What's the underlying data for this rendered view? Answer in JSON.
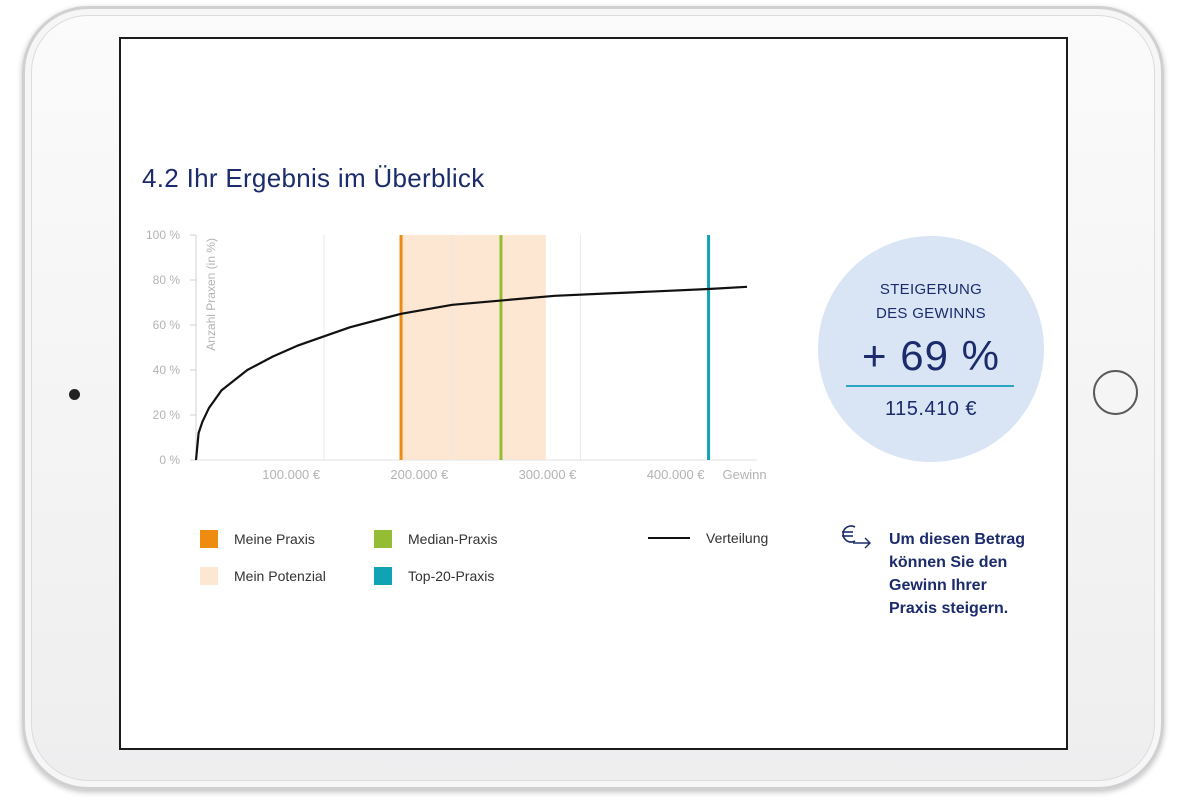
{
  "page": {
    "title": "4.2 Ihr Ergebnis im Überblick"
  },
  "kpi": {
    "label_line1": "STEIGERUNG",
    "label_line2": "DES GEWINNS",
    "value": "+ 69 %",
    "amount": "115.410 €"
  },
  "note": {
    "icon": "euro-arrow-icon",
    "text_lines": [
      "Um diesen Betrag",
      "können Sie den",
      "Gewinn Ihrer",
      "Praxis steigern."
    ]
  },
  "legend": {
    "meine_praxis": "Meine Praxis",
    "mein_potenzial": "Mein Potenzial",
    "median_praxis": "Median-Praxis",
    "top20_praxis": "Top-20-Praxis",
    "verteilung": "Verteilung"
  },
  "colors": {
    "primary_text": "#1b2b6b",
    "meine_praxis": "#ee8c12",
    "mein_potenzial": "#fde6d2",
    "median_praxis": "#94bd35",
    "top20_praxis": "#0fa3b5",
    "verteilung": "#111111",
    "kpi_circle": "#d9e5f4"
  },
  "chart_data": {
    "type": "line",
    "title": "4.2 Ihr Ergebnis im Überblick",
    "xlabel": "Gewinn",
    "ylabel": "Anzahl Praxen (in %)",
    "xlim": [
      0,
      430000
    ],
    "ylim": [
      0,
      100
    ],
    "x_ticks": [
      {
        "value": 100000,
        "label": "100.000 €"
      },
      {
        "value": 200000,
        "label": "200.000 €"
      },
      {
        "value": 300000,
        "label": "300.000 €"
      },
      {
        "value": 400000,
        "label": "400.000 €"
      }
    ],
    "y_ticks": [
      {
        "value": 0,
        "label": "0 %"
      },
      {
        "value": 20,
        "label": "20 %"
      },
      {
        "value": 40,
        "label": "40 %"
      },
      {
        "value": 60,
        "label": "60 %"
      },
      {
        "value": 80,
        "label": "80 %"
      },
      {
        "value": 100,
        "label": "100 %"
      }
    ],
    "grid": true,
    "series": [
      {
        "name": "Verteilung",
        "x": [
          0,
          2000,
          5000,
          10000,
          20000,
          40000,
          60000,
          80000,
          100000,
          120000,
          160000,
          200000,
          240000,
          280000,
          320000,
          360000,
          400000,
          430000
        ],
        "y": [
          0,
          12,
          17,
          23,
          31,
          40,
          46,
          51,
          55,
          59,
          65,
          69,
          71,
          73,
          74,
          75,
          76,
          77
        ]
      }
    ],
    "markers": [
      {
        "name": "Meine Praxis",
        "x": 160000
      },
      {
        "name": "Median-Praxis",
        "x": 238000
      },
      {
        "name": "Top-20-Praxis",
        "x": 400000
      }
    ],
    "band": {
      "name": "Mein Potenzial",
      "x_start": 160000,
      "x_end": 273000
    }
  }
}
